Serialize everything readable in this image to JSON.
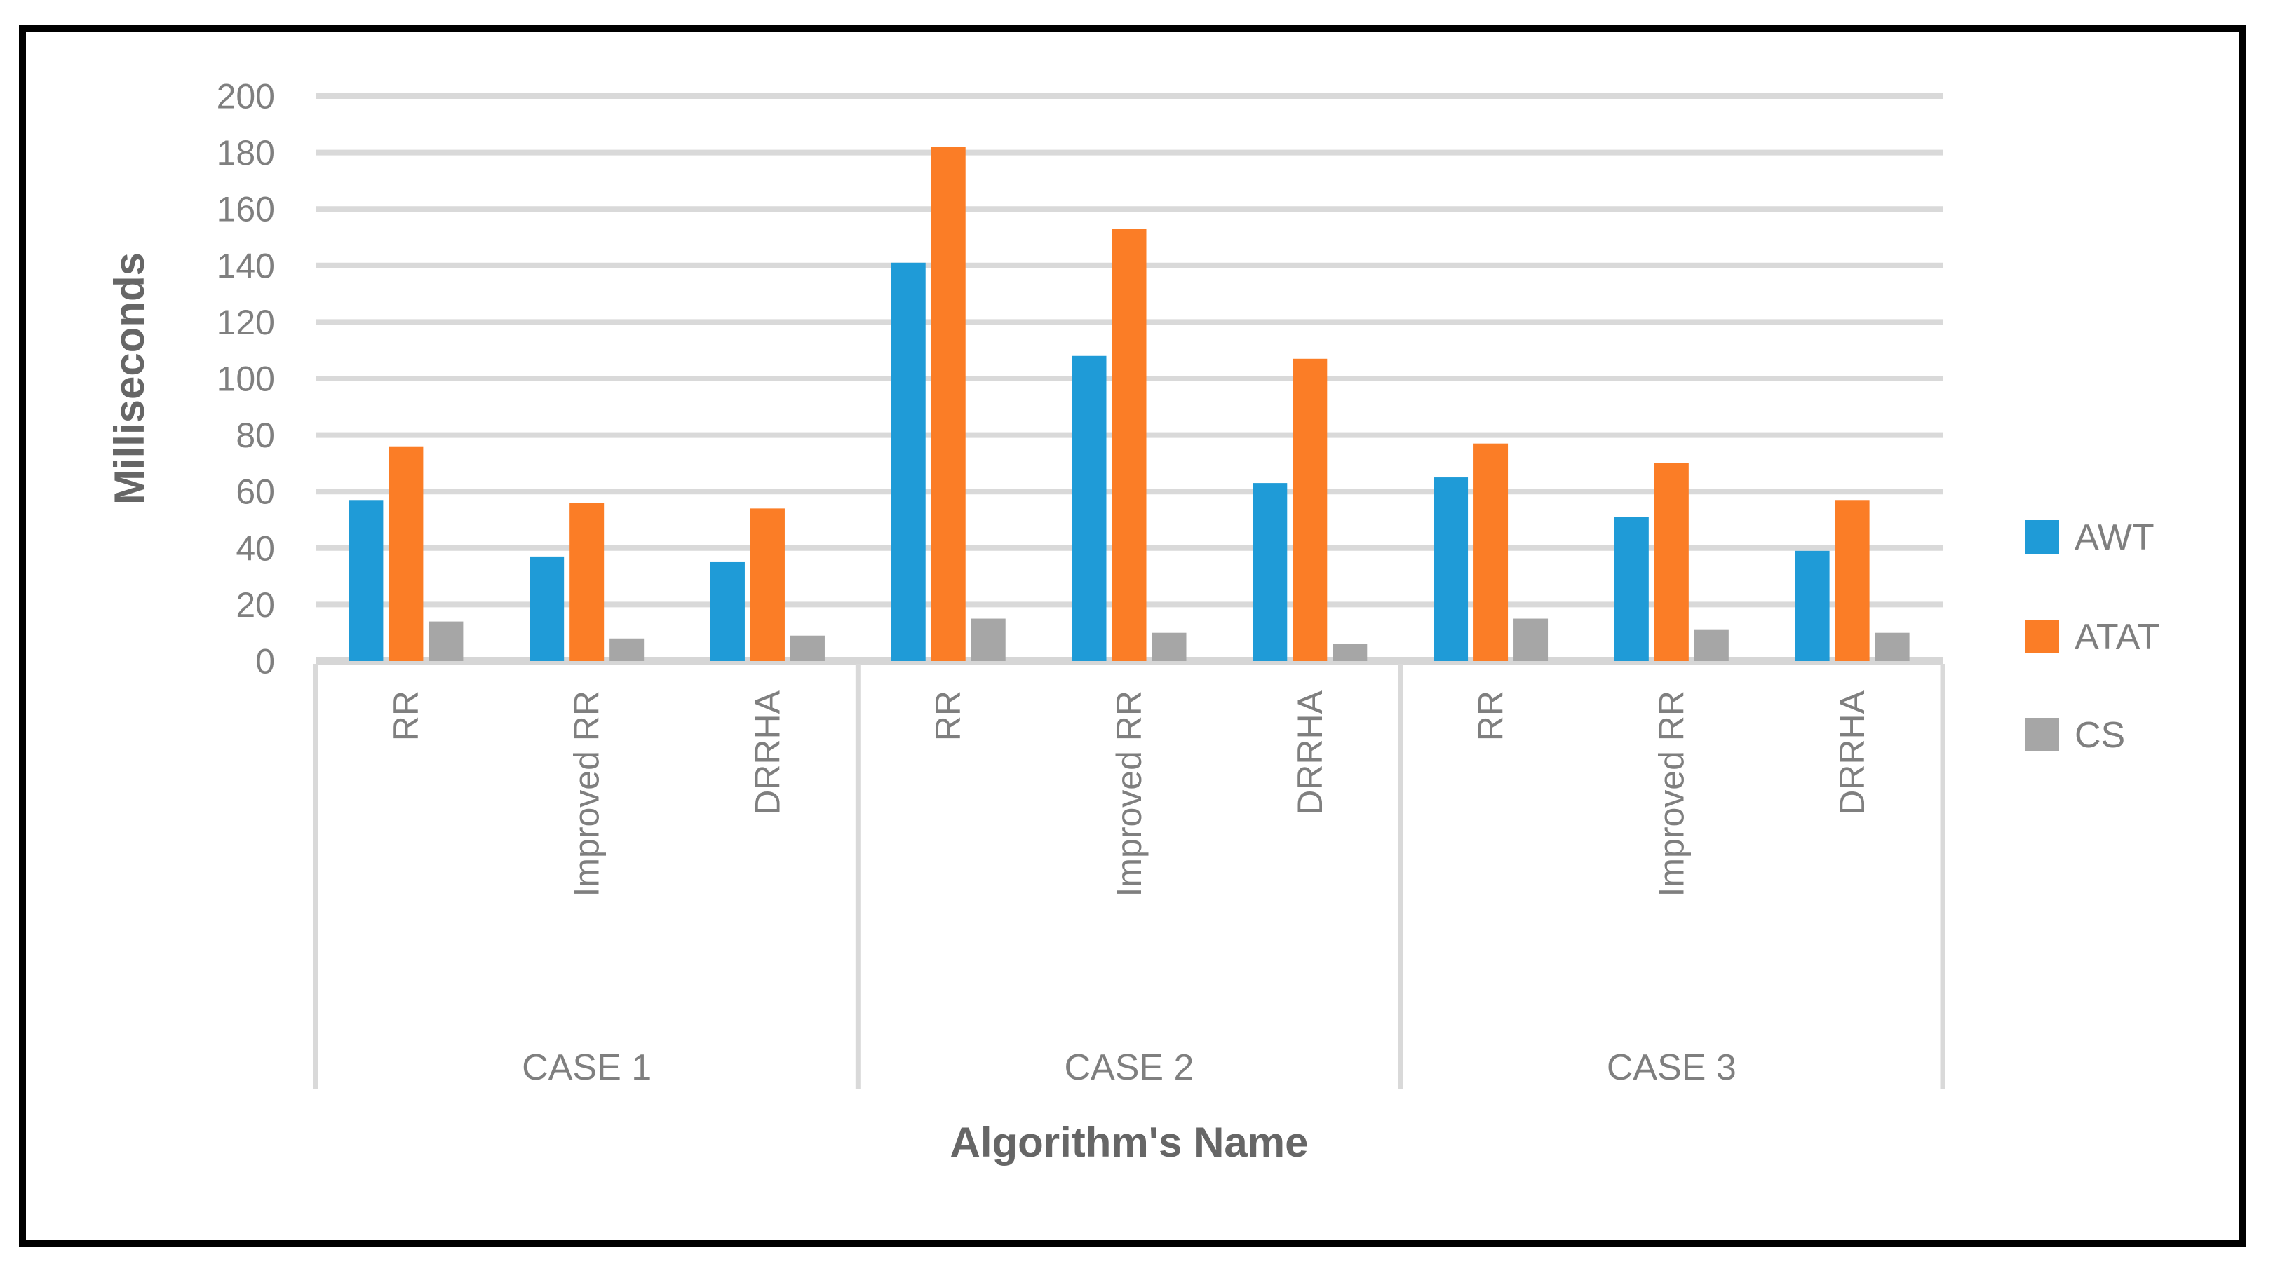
{
  "chart_data": {
    "type": "bar",
    "title": "",
    "ylabel": "Milliseconds",
    "xlabel": "Algorithm's Name",
    "ylim": [
      0,
      200
    ],
    "ytick_step": 20,
    "grid": true,
    "legend_position": "right",
    "group_labels": [
      "CASE 1",
      "CASE 2",
      "CASE 3"
    ],
    "categories_per_group": [
      "RR",
      "Improved RR",
      "DRRHA"
    ],
    "series": [
      {
        "name": "AWT",
        "color": "#1F9BD7",
        "values": [
          57,
          37,
          35,
          141,
          108,
          63,
          65,
          51,
          39
        ]
      },
      {
        "name": "ATAT",
        "color": "#FB7D26",
        "values": [
          76,
          56,
          54,
          182,
          153,
          107,
          77,
          70,
          57
        ]
      },
      {
        "name": "CS",
        "color": "#A6A6A6",
        "values": [
          14,
          8,
          9,
          15,
          10,
          6,
          15,
          11,
          10
        ]
      }
    ],
    "grid_color": "#D9D9D9",
    "axis_line_color": "#D6D6D6",
    "tick_label_color": "#7F7F7F",
    "axis_title_color": "#666666",
    "frame_color": "#000000"
  }
}
